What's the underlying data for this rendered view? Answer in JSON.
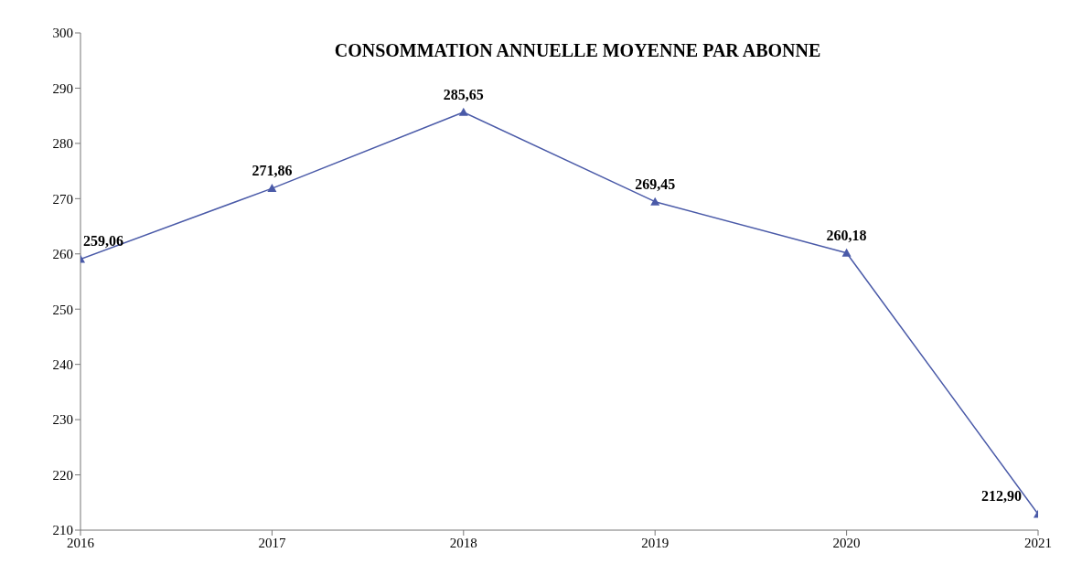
{
  "chart_data": {
    "type": "line",
    "title": "CONSOMMATION ANNUELLE MOYENNE PAR ABONNE",
    "x": [
      2016,
      2017,
      2018,
      2019,
      2020,
      2021
    ],
    "series": [
      {
        "color": "#4a5aa8",
        "values": [
          259.06,
          271.86,
          285.65,
          269.45,
          260.18,
          212.9
        ],
        "value_labels": [
          "259,06",
          "271,86",
          "285,65",
          "269,45",
          "260,18",
          "212,90"
        ]
      }
    ],
    "xlim": [
      2016,
      2021
    ],
    "xticks": [
      2016,
      2017,
      2018,
      2019,
      2020,
      2021
    ],
    "ylim": [
      210,
      300
    ],
    "yticks": [
      210,
      220,
      230,
      240,
      250,
      260,
      270,
      280,
      290,
      300
    ],
    "grid": false,
    "marker": "triangle",
    "line_style": "solid"
  }
}
